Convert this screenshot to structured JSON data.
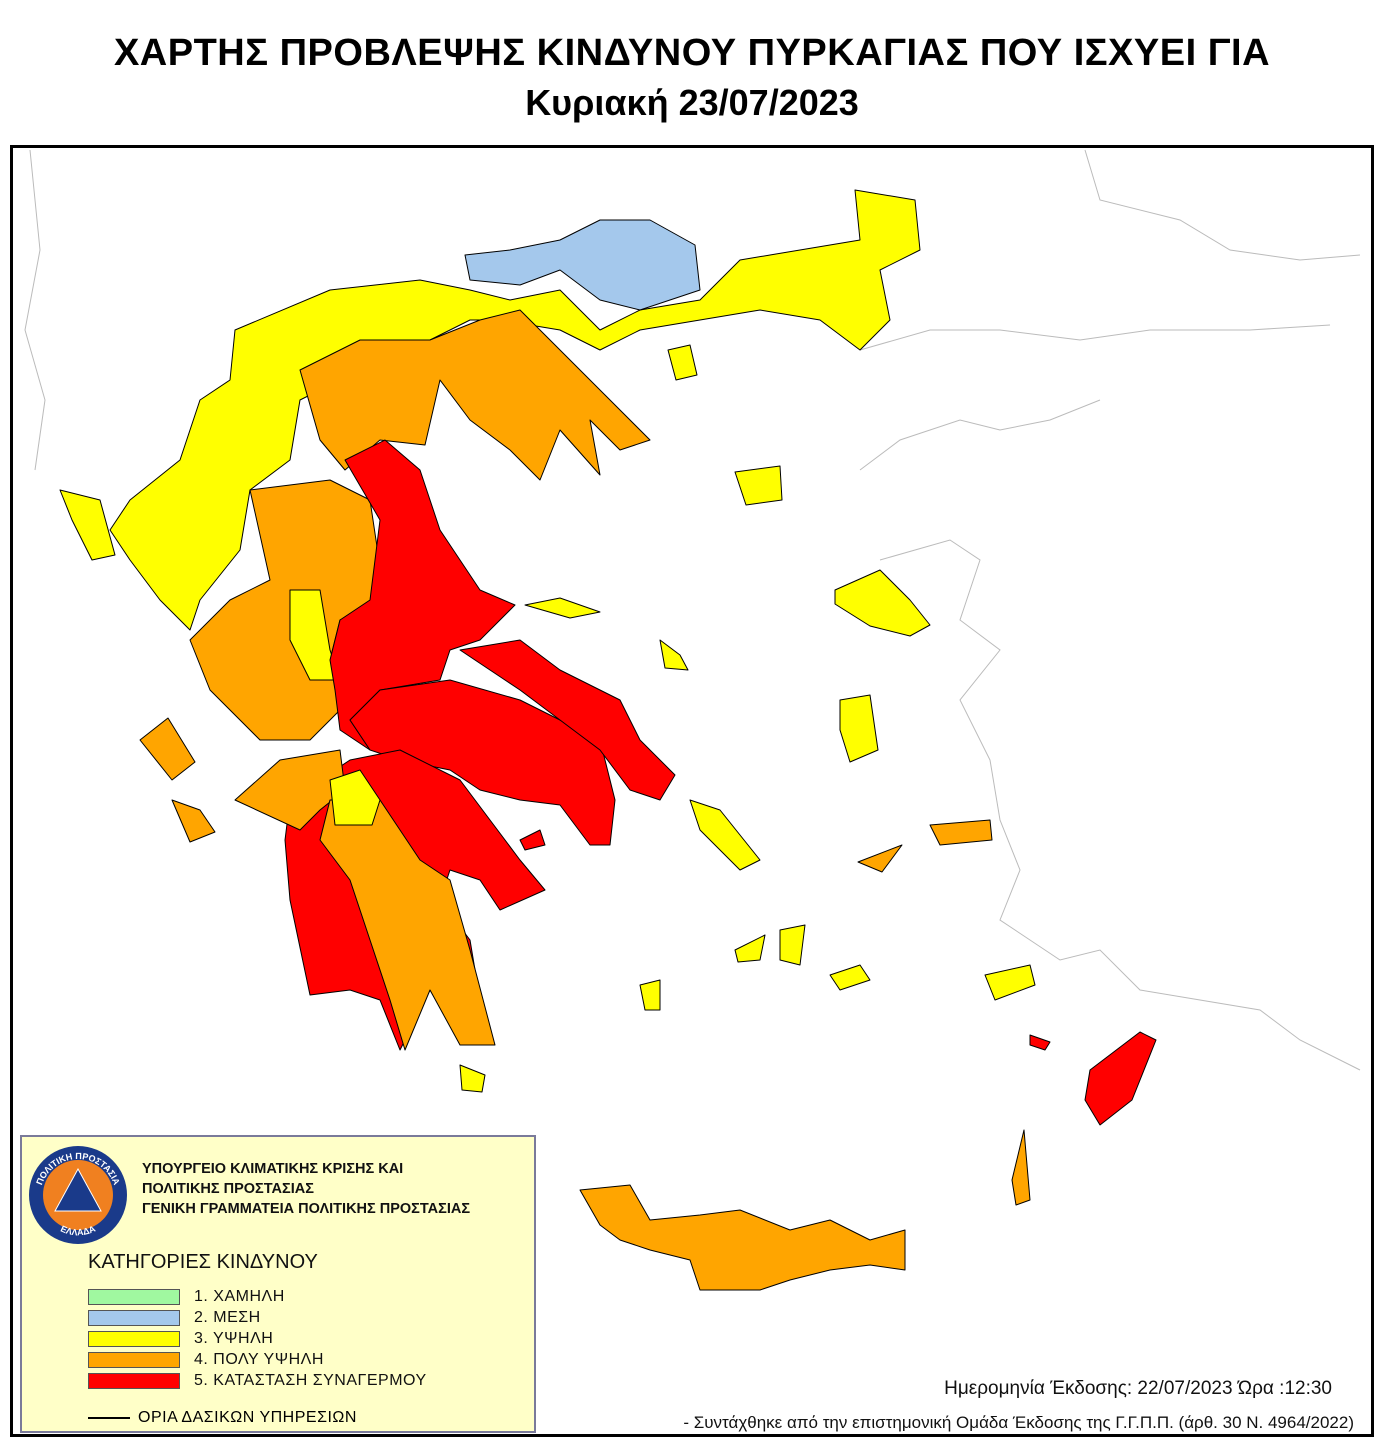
{
  "header": {
    "title": "ΧΑΡΤΗΣ ΠΡΟΒΛΕΨΗΣ ΚΙΝΔΥΝΟΥ ΠΥΡΚΑΓΙΑΣ ΠΟΥ ΙΣΧΥΕΙ ΓΙΑ",
    "date": "Κυριακή 23/07/2023"
  },
  "legend": {
    "org_lines": [
      "ΥΠΟΥΡΓΕΙΟ  ΚΛΙΜΑΤΙΚΗΣ ΚΡΙΣΗΣ ΚΑΙ",
      "ΠΟΛΙΤΙΚΗΣ ΠΡΟΣΤΑΣΙΑΣ",
      "ΓΕΝΙΚΗ ΓΡΑΜΜΑΤΕΙΑ ΠΟΛΙΤΙΚΗΣ ΠΡΟΣΤΑΣΙΑΣ"
    ],
    "logo_text": {
      "top": "ΠΟΛΙΤΙΚΗ ΠΡΟΣΤΑΣΙΑ",
      "bottom": "ΕΛΛΑΔΑ"
    },
    "title": "ΚΑΤΗΓΟΡΙΕΣ ΚΙΝΔΥΝΟΥ",
    "categories": [
      {
        "label": "1. ΧΑΜΗΛΗ",
        "color": "#a0f8a0"
      },
      {
        "label": "2. ΜΕΣΗ",
        "color": "#a4c8ec"
      },
      {
        "label": "3. ΥΨΗΛΗ",
        "color": "#ffff00"
      },
      {
        "label": "4. ΠΟΛΥ ΥΨΗΛΗ",
        "color": "#ffa500"
      },
      {
        "label": "5. ΚΑΤΑΣΤΑΣΗ ΣΥΝΑΓΕΡΜΟΥ",
        "color": "#ff0000"
      }
    ],
    "boundary_label": "ΟΡΙΑ ΔΑΣΙΚΩΝ ΥΠΗΡΕΣΙΩΝ"
  },
  "footer": {
    "issue": "Ημερομηνία Έκδοσης: 22/07/2023  Ώρα :12:30",
    "credit": "- Συντάχθηκε από την επιστημονική  Ομάδα  Έκδοσης της Γ.Γ.Π.Π. (άρθ. 30 Ν. 4964/2022)"
  }
}
